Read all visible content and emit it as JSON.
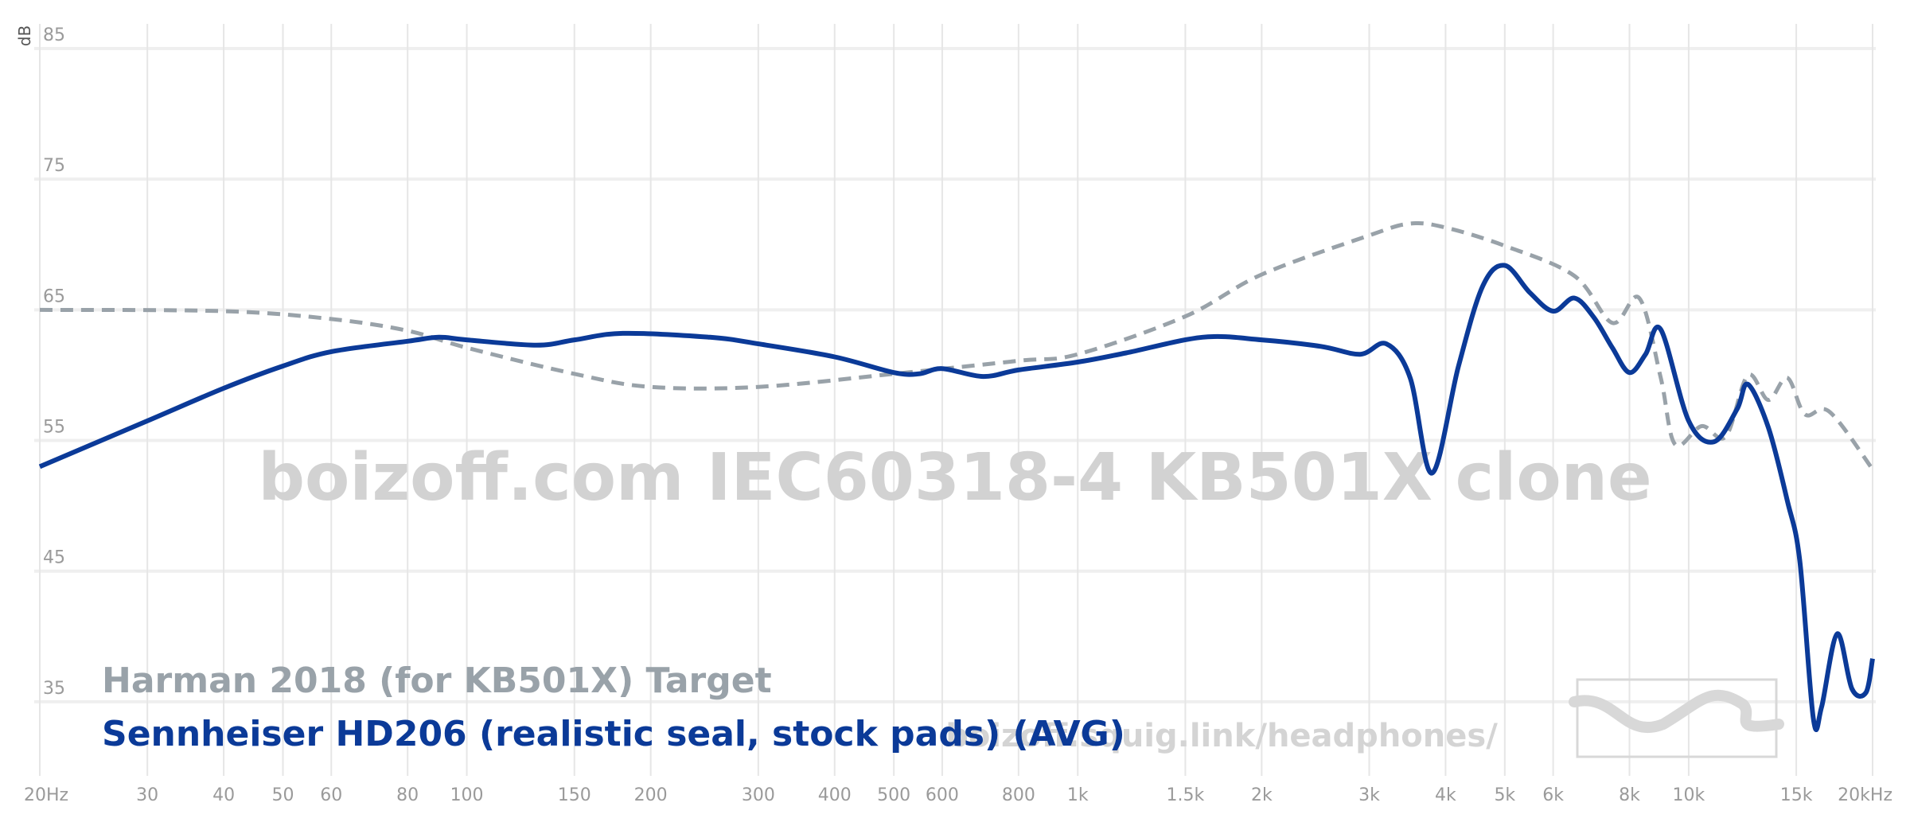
{
  "chart_data": {
    "type": "line",
    "y_label": "dB",
    "watermark": "boizoff.com IEC60318-4 KB501X clone",
    "url_text": "boizoff.squig.link/headphones/",
    "x_scale": "log",
    "grid": true,
    "legend": "bottom-left",
    "xlim": [
      20,
      20000
    ],
    "ylim": [
      30,
      85
    ],
    "yticks": [
      35,
      45,
      55,
      65,
      75,
      85
    ],
    "xticks": [
      {
        "value": 20,
        "label": "20Hz"
      },
      30,
      40,
      50,
      60,
      80,
      100,
      150,
      200,
      300,
      400,
      500,
      600,
      800,
      {
        "value": 1000,
        "label": "1k"
      },
      {
        "value": 1500,
        "label": "1.5k"
      },
      {
        "value": 2000,
        "label": "2k"
      },
      {
        "value": 3000,
        "label": "3k"
      },
      {
        "value": 4000,
        "label": "4k"
      },
      {
        "value": 5000,
        "label": "5k"
      },
      {
        "value": 6000,
        "label": "6k"
      },
      {
        "value": 8000,
        "label": "8k"
      },
      {
        "value": 10000,
        "label": "10k"
      },
      {
        "value": 15000,
        "label": "15k"
      },
      {
        "value": 20000,
        "label": "20kHz"
      }
    ],
    "series": [
      {
        "name": "Harman 2018 (for KB501X) Target",
        "color": "#99a2a9",
        "dashed": true,
        "x": [
          20,
          40,
          60,
          80,
          100,
          150,
          200,
          300,
          500,
          800,
          1000,
          1500,
          2000,
          3000,
          3500,
          4000,
          5000,
          6500,
          7500,
          8300,
          9000,
          9500,
          10500,
          11500,
          12500,
          13500,
          14500,
          15500,
          17000,
          20000
        ],
        "values": [
          65.0,
          64.9,
          64.3,
          63.4,
          62.1,
          60.1,
          59.1,
          59.1,
          60.1,
          61.1,
          61.6,
          64.5,
          67.7,
          70.7,
          71.6,
          71.3,
          69.9,
          67.6,
          64.0,
          65.9,
          59.8,
          54.7,
          56.1,
          55.3,
          60.0,
          58.1,
          59.8,
          57.0,
          57.2,
          52.8
        ]
      },
      {
        "name": "Sennheiser HD206 (realistic seal, stock pads) (AVG)",
        "color": "#0b3a98",
        "dashed": false,
        "x": [
          20,
          30,
          40,
          50,
          60,
          80,
          90,
          100,
          130,
          150,
          180,
          250,
          300,
          400,
          500,
          550,
          600,
          700,
          800,
          1000,
          1200,
          1600,
          2000,
          2500,
          2900,
          3200,
          3500,
          3800,
          4200,
          4600,
          5000,
          5500,
          6000,
          6500,
          7000,
          7500,
          8000,
          8500,
          9000,
          10000,
          11000,
          12000,
          12500,
          13500,
          14500,
          15200,
          16000,
          16500,
          17500,
          18500,
          19500,
          20000
        ],
        "values": [
          53.0,
          56.5,
          59.0,
          60.7,
          61.8,
          62.6,
          62.9,
          62.7,
          62.3,
          62.7,
          63.2,
          62.9,
          62.4,
          61.4,
          60.2,
          60.1,
          60.5,
          59.9,
          60.4,
          61.0,
          61.7,
          62.9,
          62.7,
          62.2,
          61.6,
          62.4,
          59.8,
          52.5,
          60.7,
          66.8,
          68.4,
          66.3,
          64.9,
          65.9,
          64.4,
          62.1,
          60.2,
          61.6,
          63.5,
          56.5,
          54.9,
          57.4,
          59.3,
          56.0,
          50.4,
          45.8,
          33.7,
          34.6,
          40.2,
          36.0,
          35.7,
          38.3
        ]
      }
    ]
  }
}
